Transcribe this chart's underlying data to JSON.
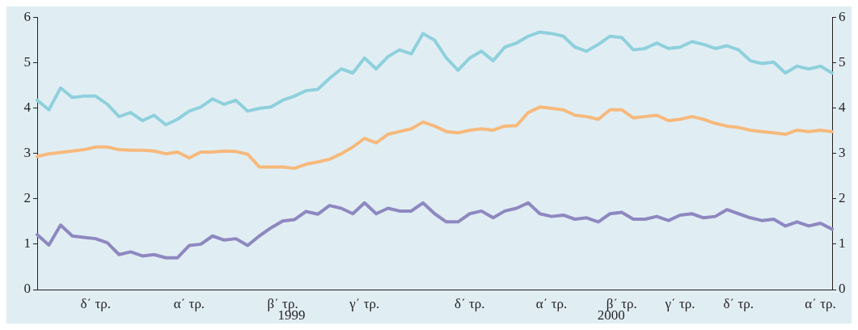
{
  "chart_data": {
    "type": "line",
    "categories": [
      null,
      null,
      null,
      null,
      null,
      "δ΄ τρ.",
      null,
      null,
      null,
      null,
      null,
      null,
      null,
      "α΄ τρ.",
      null,
      null,
      null,
      null,
      null,
      null,
      null,
      "β΄ τρ.",
      null,
      null,
      null,
      null,
      null,
      null,
      "γ΄ τρ.",
      null,
      null,
      null,
      null,
      null,
      null,
      null,
      null,
      "δ΄ τρ.",
      null,
      null,
      null,
      null,
      null,
      null,
      "α΄ τρ.",
      null,
      null,
      null,
      null,
      null,
      "β΄ τρ.",
      null,
      null,
      null,
      null,
      "γ΄ τρ.",
      null,
      null,
      null,
      null,
      "δ΄ τρ.",
      null,
      null,
      null,
      null,
      null,
      null,
      "α΄ τρ.",
      null
    ],
    "series": [
      {
        "color": "#8fd0dc",
        "values": [
          4.17,
          3.96,
          4.44,
          4.23,
          4.26,
          4.26,
          4.08,
          3.81,
          3.9,
          3.72,
          3.84,
          3.63,
          3.75,
          3.93,
          4.02,
          4.2,
          4.08,
          4.17,
          3.93,
          3.99,
          4.02,
          4.17,
          4.26,
          4.38,
          4.41,
          4.65,
          4.86,
          4.77,
          5.1,
          4.86,
          5.13,
          5.28,
          5.19,
          5.64,
          5.49,
          5.1,
          4.83,
          5.1,
          5.25,
          5.04,
          5.34,
          5.43,
          5.58,
          5.67,
          5.64,
          5.58,
          5.34,
          5.25,
          5.4,
          5.58,
          5.55,
          5.28,
          5.31,
          5.43,
          5.31,
          5.34,
          5.46,
          5.4,
          5.31,
          5.37,
          5.28,
          5.04,
          4.98,
          5.01,
          4.77,
          4.92,
          4.86,
          4.92,
          4.77
        ]
      },
      {
        "color": "#f7b97c",
        "values": [
          2.93,
          2.99,
          3.02,
          3.05,
          3.08,
          3.14,
          3.14,
          3.08,
          3.07,
          3.07,
          3.05,
          2.99,
          3.03,
          2.9,
          3.03,
          3.03,
          3.05,
          3.04,
          2.98,
          2.7,
          2.7,
          2.7,
          2.67,
          2.76,
          2.81,
          2.87,
          2.99,
          3.14,
          3.33,
          3.23,
          3.42,
          3.48,
          3.54,
          3.69,
          3.6,
          3.48,
          3.45,
          3.51,
          3.54,
          3.51,
          3.6,
          3.61,
          3.9,
          4.02,
          3.99,
          3.96,
          3.84,
          3.81,
          3.75,
          3.96,
          3.96,
          3.78,
          3.81,
          3.84,
          3.72,
          3.75,
          3.81,
          3.75,
          3.66,
          3.6,
          3.57,
          3.51,
          3.48,
          3.45,
          3.42,
          3.51,
          3.48,
          3.51,
          3.48
        ]
      },
      {
        "color": "#8e88c0",
        "values": [
          1.21,
          0.98,
          1.42,
          1.18,
          1.15,
          1.12,
          1.03,
          0.77,
          0.83,
          0.74,
          0.77,
          0.7,
          0.7,
          0.97,
          1.0,
          1.18,
          1.09,
          1.12,
          0.97,
          1.18,
          1.36,
          1.51,
          1.54,
          1.72,
          1.66,
          1.85,
          1.79,
          1.67,
          1.91,
          1.67,
          1.79,
          1.73,
          1.73,
          1.91,
          1.67,
          1.49,
          1.49,
          1.67,
          1.73,
          1.58,
          1.73,
          1.79,
          1.91,
          1.67,
          1.61,
          1.64,
          1.55,
          1.58,
          1.49,
          1.67,
          1.7,
          1.55,
          1.55,
          1.61,
          1.52,
          1.64,
          1.67,
          1.58,
          1.61,
          1.76,
          1.67,
          1.58,
          1.52,
          1.55,
          1.4,
          1.49,
          1.4,
          1.46,
          1.33
        ]
      }
    ],
    "ylim": [
      0,
      6
    ],
    "yticks": [
      0,
      1,
      2,
      3,
      4,
      5,
      6
    ],
    "y2lim": [
      0,
      6
    ],
    "y2ticks": [
      0,
      1,
      2,
      3,
      4,
      5,
      6
    ],
    "annotations": [
      "1999",
      "2000"
    ],
    "grid": false,
    "legend": false,
    "marker": "none",
    "line_style": "solid"
  }
}
